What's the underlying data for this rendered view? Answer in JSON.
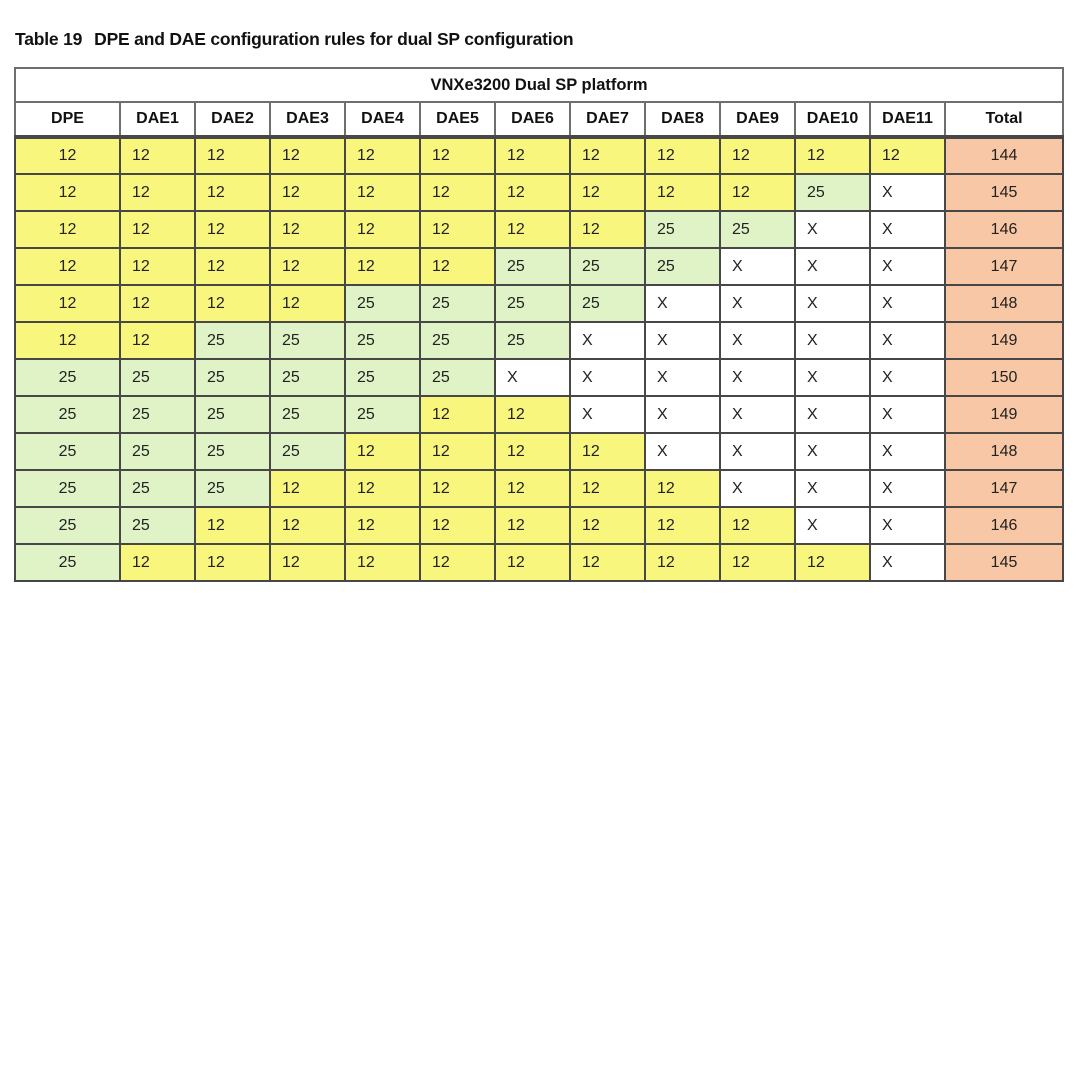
{
  "title": {
    "label": "Table 19",
    "text": "DPE and DAE configuration rules for dual SP configuration"
  },
  "table": {
    "platform_header": "VNXe3200 Dual SP platform",
    "columns": [
      "DPE",
      "DAE1",
      "DAE2",
      "DAE3",
      "DAE4",
      "DAE5",
      "DAE6",
      "DAE7",
      "DAE8",
      "DAE9",
      "DAE10",
      "DAE11",
      "Total"
    ],
    "rows": [
      {
        "cells": [
          "12",
          "12",
          "12",
          "12",
          "12",
          "12",
          "12",
          "12",
          "12",
          "12",
          "12",
          "12"
        ],
        "total": "144"
      },
      {
        "cells": [
          "12",
          "12",
          "12",
          "12",
          "12",
          "12",
          "12",
          "12",
          "12",
          "12",
          "25",
          "X"
        ],
        "total": "145"
      },
      {
        "cells": [
          "12",
          "12",
          "12",
          "12",
          "12",
          "12",
          "12",
          "12",
          "25",
          "25",
          "X",
          "X"
        ],
        "total": "146"
      },
      {
        "cells": [
          "12",
          "12",
          "12",
          "12",
          "12",
          "12",
          "25",
          "25",
          "25",
          "X",
          "X",
          "X"
        ],
        "total": "147"
      },
      {
        "cells": [
          "12",
          "12",
          "12",
          "12",
          "25",
          "25",
          "25",
          "25",
          "X",
          "X",
          "X",
          "X"
        ],
        "total": "148"
      },
      {
        "cells": [
          "12",
          "12",
          "25",
          "25",
          "25",
          "25",
          "25",
          "X",
          "X",
          "X",
          "X",
          "X"
        ],
        "total": "149"
      },
      {
        "cells": [
          "25",
          "25",
          "25",
          "25",
          "25",
          "25",
          "X",
          "X",
          "X",
          "X",
          "X",
          "X"
        ],
        "total": "150"
      },
      {
        "cells": [
          "25",
          "25",
          "25",
          "25",
          "25",
          "12",
          "12",
          "X",
          "X",
          "X",
          "X",
          "X"
        ],
        "total": "149"
      },
      {
        "cells": [
          "25",
          "25",
          "25",
          "25",
          "12",
          "12",
          "12",
          "12",
          "X",
          "X",
          "X",
          "X"
        ],
        "total": "148"
      },
      {
        "cells": [
          "25",
          "25",
          "25",
          "12",
          "12",
          "12",
          "12",
          "12",
          "12",
          "X",
          "X",
          "X"
        ],
        "total": "147"
      },
      {
        "cells": [
          "25",
          "25",
          "12",
          "12",
          "12",
          "12",
          "12",
          "12",
          "12",
          "12",
          "X",
          "X"
        ],
        "total": "146"
      },
      {
        "cells": [
          "25",
          "12",
          "12",
          "12",
          "12",
          "12",
          "12",
          "12",
          "12",
          "12",
          "12",
          "X"
        ],
        "total": "145"
      }
    ],
    "cell_colors": {
      "12": "#F9F67E",
      "25": "#DFF3C6",
      "X": "#FFFFFF",
      "total": "#F8C7A5"
    },
    "layout_widths": {
      "dpe": 105,
      "dae": 75,
      "total": 118
    }
  }
}
